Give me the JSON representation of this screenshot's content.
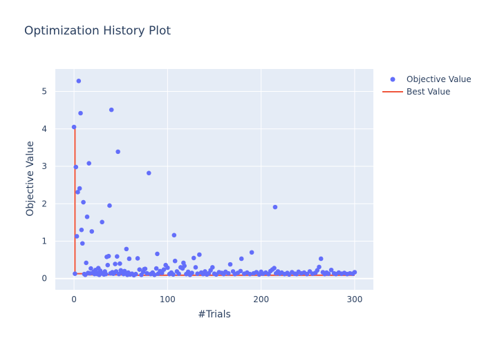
{
  "chart_data": {
    "type": "scatter",
    "title": "Optimization History Plot",
    "xlabel": "#Trials",
    "ylabel": "Objective Value",
    "xlim": [
      -20,
      320
    ],
    "ylim": [
      -0.3,
      5.6
    ],
    "x_ticks": [
      0,
      100,
      200,
      300
    ],
    "y_ticks": [
      0,
      1,
      2,
      3,
      4,
      5
    ],
    "grid": true,
    "legend_position": "top-right",
    "colors": {
      "plot_bg": "#E5ECF6",
      "grid": "#FFFFFF",
      "points": "#636EFA",
      "best_line": "#EF553B"
    },
    "series": [
      {
        "name": "Objective Value",
        "kind": "markers",
        "points": [
          [
            0,
            4.05
          ],
          [
            1,
            0.13
          ],
          [
            2,
            2.98
          ],
          [
            3,
            1.13
          ],
          [
            4,
            2.31
          ],
          [
            5,
            5.28
          ],
          [
            6,
            2.41
          ],
          [
            7,
            4.42
          ],
          [
            8,
            1.3
          ],
          [
            9,
            0.94
          ],
          [
            10,
            2.04
          ],
          [
            11,
            0.12
          ],
          [
            12,
            0.1
          ],
          [
            13,
            0.42
          ],
          [
            14,
            1.65
          ],
          [
            15,
            0.15
          ],
          [
            16,
            3.08
          ],
          [
            17,
            0.14
          ],
          [
            18,
            0.27
          ],
          [
            19,
            1.26
          ],
          [
            20,
            0.15
          ],
          [
            21,
            0.18
          ],
          [
            22,
            0.12
          ],
          [
            23,
            0.23
          ],
          [
            24,
            0.16
          ],
          [
            25,
            0.12
          ],
          [
            26,
            0.28
          ],
          [
            27,
            0.1
          ],
          [
            28,
            0.21
          ],
          [
            29,
            0.15
          ],
          [
            30,
            1.51
          ],
          [
            31,
            0.13
          ],
          [
            32,
            0.11
          ],
          [
            33,
            0.19
          ],
          [
            34,
            0.12
          ],
          [
            35,
            0.58
          ],
          [
            36,
            0.36
          ],
          [
            37,
            0.6
          ],
          [
            38,
            1.95
          ],
          [
            39,
            0.14
          ],
          [
            40,
            4.51
          ],
          [
            41,
            0.17
          ],
          [
            42,
            0.13
          ],
          [
            43,
            0.15
          ],
          [
            44,
            0.39
          ],
          [
            45,
            0.19
          ],
          [
            46,
            0.59
          ],
          [
            47,
            3.39
          ],
          [
            48,
            0.12
          ],
          [
            49,
            0.4
          ],
          [
            50,
            0.22
          ],
          [
            51,
            0.17
          ],
          [
            52,
            0.15
          ],
          [
            53,
            0.12
          ],
          [
            54,
            0.2
          ],
          [
            55,
            0.14
          ],
          [
            56,
            0.79
          ],
          [
            57,
            0.1
          ],
          [
            58,
            0.16
          ],
          [
            59,
            0.53
          ],
          [
            60,
            0.11
          ],
          [
            62,
            0.13
          ],
          [
            64,
            0.09
          ],
          [
            66,
            0.12
          ],
          [
            68,
            0.54
          ],
          [
            70,
            0.24
          ],
          [
            72,
            0.1
          ],
          [
            74,
            0.18
          ],
          [
            75,
            0.25
          ],
          [
            76,
            0.26
          ],
          [
            78,
            0.14
          ],
          [
            80,
            2.82
          ],
          [
            82,
            0.12
          ],
          [
            84,
            0.16
          ],
          [
            86,
            0.1
          ],
          [
            88,
            0.27
          ],
          [
            89,
            0.66
          ],
          [
            90,
            0.13
          ],
          [
            92,
            0.2
          ],
          [
            94,
            0.15
          ],
          [
            96,
            0.24
          ],
          [
            98,
            0.36
          ],
          [
            100,
            0.29
          ],
          [
            102,
            0.12
          ],
          [
            104,
            0.16
          ],
          [
            106,
            0.11
          ],
          [
            107,
            1.16
          ],
          [
            108,
            0.47
          ],
          [
            110,
            0.19
          ],
          [
            112,
            0.13
          ],
          [
            114,
            0.3
          ],
          [
            116,
            0.27
          ],
          [
            117,
            0.42
          ],
          [
            118,
            0.34
          ],
          [
            120,
            0.12
          ],
          [
            122,
            0.18
          ],
          [
            124,
            0.1
          ],
          [
            126,
            0.15
          ],
          [
            128,
            0.55
          ],
          [
            130,
            0.3
          ],
          [
            132,
            0.13
          ],
          [
            134,
            0.64
          ],
          [
            136,
            0.16
          ],
          [
            138,
            0.12
          ],
          [
            140,
            0.19
          ],
          [
            142,
            0.11
          ],
          [
            144,
            0.14
          ],
          [
            146,
            0.22
          ],
          [
            148,
            0.3
          ],
          [
            150,
            0.13
          ],
          [
            152,
            0.11
          ],
          [
            155,
            0.17
          ],
          [
            158,
            0.15
          ],
          [
            160,
            0.12
          ],
          [
            162,
            0.18
          ],
          [
            165,
            0.14
          ],
          [
            167,
            0.38
          ],
          [
            170,
            0.19
          ],
          [
            172,
            0.12
          ],
          [
            175,
            0.15
          ],
          [
            178,
            0.2
          ],
          [
            179,
            0.53
          ],
          [
            182,
            0.13
          ],
          [
            185,
            0.16
          ],
          [
            188,
            0.12
          ],
          [
            190,
            0.7
          ],
          [
            192,
            0.14
          ],
          [
            195,
            0.17
          ],
          [
            198,
            0.11
          ],
          [
            200,
            0.18
          ],
          [
            202,
            0.13
          ],
          [
            205,
            0.16
          ],
          [
            208,
            0.12
          ],
          [
            210,
            0.2
          ],
          [
            212,
            0.24
          ],
          [
            214,
            0.28
          ],
          [
            215,
            1.91
          ],
          [
            216,
            0.14
          ],
          [
            218,
            0.19
          ],
          [
            220,
            0.13
          ],
          [
            222,
            0.16
          ],
          [
            225,
            0.12
          ],
          [
            228,
            0.15
          ],
          [
            230,
            0.11
          ],
          [
            233,
            0.17
          ],
          [
            236,
            0.13
          ],
          [
            238,
            0.12
          ],
          [
            240,
            0.18
          ],
          [
            243,
            0.14
          ],
          [
            246,
            0.16
          ],
          [
            249,
            0.12
          ],
          [
            252,
            0.19
          ],
          [
            255,
            0.13
          ],
          [
            258,
            0.15
          ],
          [
            260,
            0.22
          ],
          [
            262,
            0.31
          ],
          [
            264,
            0.53
          ],
          [
            266,
            0.17
          ],
          [
            268,
            0.12
          ],
          [
            270,
            0.16
          ],
          [
            272,
            0.13
          ],
          [
            275,
            0.23
          ],
          [
            278,
            0.14
          ],
          [
            280,
            0.12
          ],
          [
            283,
            0.16
          ],
          [
            286,
            0.13
          ],
          [
            289,
            0.15
          ],
          [
            292,
            0.12
          ],
          [
            295,
            0.14
          ],
          [
            298,
            0.13
          ],
          [
            300,
            0.17
          ]
        ]
      },
      {
        "name": "Best Value",
        "kind": "line",
        "points": [
          [
            0,
            4.05
          ],
          [
            1,
            0.13
          ],
          [
            11,
            0.12
          ],
          [
            12,
            0.1
          ],
          [
            64,
            0.09
          ],
          [
            300,
            0.09
          ]
        ]
      }
    ]
  }
}
